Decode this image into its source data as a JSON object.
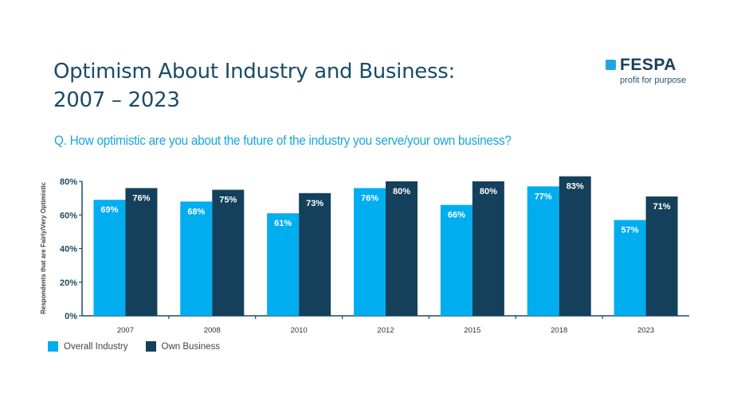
{
  "header": {
    "title_line1": "Optimism About Industry and Business:",
    "title_line2": "2007 – 2023",
    "question": "Q. How optimistic are you about the future of the industry you serve/your own business?"
  },
  "logo": {
    "wordmark": "FESPA",
    "tagline": "profit for purpose",
    "square_color": "#1ea7e1",
    "text_color": "#17405c"
  },
  "chart_data": {
    "type": "bar",
    "title": "Optimism About Industry and Business: 2007 – 2023",
    "subtitle": "Q. How optimistic are you about the future of the industry you serve/your own business?",
    "xlabel": "",
    "ylabel": "Respondents that are Fairly/Very Optimistic",
    "ylim": [
      0,
      80
    ],
    "yticks": [
      0,
      20,
      40,
      60,
      80
    ],
    "ytick_labels": [
      "0%",
      "20%",
      "40%",
      "60%",
      "80%"
    ],
    "grid": false,
    "legend_position": "bottom-left",
    "categories": [
      "2007",
      "2008",
      "2010",
      "2012",
      "2015",
      "2018",
      "2023"
    ],
    "series": [
      {
        "name": "Overall Industry",
        "color": "#00adef",
        "values": [
          69,
          68,
          61,
          76,
          66,
          77,
          57
        ],
        "labels": [
          "69%",
          "68%",
          "61%",
          "76%",
          "66%",
          "77%",
          "57%"
        ]
      },
      {
        "name": "Own Business",
        "color": "#14405c",
        "values": [
          76,
          75,
          73,
          80,
          80,
          83,
          71
        ],
        "labels": [
          "76%",
          "75%",
          "73%",
          "80%",
          "80%",
          "83%",
          "71%"
        ]
      }
    ]
  },
  "legend": [
    {
      "label": "Overall Industry",
      "color": "#00adef"
    },
    {
      "label": "Own Business",
      "color": "#14405c"
    }
  ]
}
